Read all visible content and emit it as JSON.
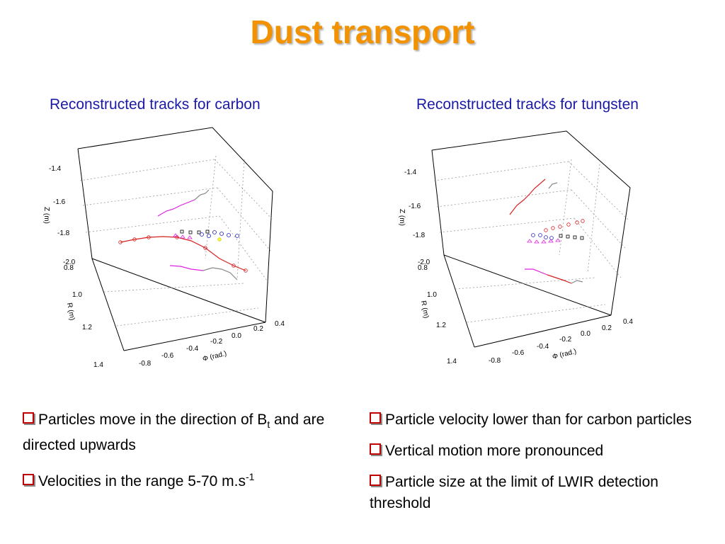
{
  "title": "Dust transport",
  "colors": {
    "title": "#f39200",
    "subtitle": "#1a1aa6",
    "bullet_box": "#c00000"
  },
  "subtitles": {
    "left": "Reconstructed tracks for carbon",
    "right": "Reconstructed tracks for tungsten"
  },
  "bullets_left": {
    "b1_a": "Particles move in the direction of B",
    "b1_sub": "t",
    "b1_b": " and are directed upwards",
    "b2_a": "Velocities in the range 5-70 m.s",
    "b2_sup": "-1"
  },
  "bullets_right": {
    "b1": "Particle velocity lower than for carbon particles",
    "b2": "Vertical motion more pronounced",
    "b3": "Particle size at the limit of LWIR detection threshold"
  },
  "chart_data": [
    {
      "type": "scatter",
      "title": "Reconstructed tracks for carbon",
      "zlabel": "Z (m)",
      "ylabel": "R (m)",
      "xlabel": "Φ (rad.)",
      "z_ticks": [
        "-1.4",
        "-1.6",
        "-1.8",
        "-2.0"
      ],
      "r_ticks": [
        "0.8",
        "1.0",
        "1.2",
        "1.4"
      ],
      "phi_ticks": [
        "-0.8",
        "-0.6",
        "-0.4",
        "-0.2",
        "0.0",
        "0.2",
        "0.4"
      ],
      "grid": true
    },
    {
      "type": "scatter",
      "title": "Reconstructed tracks for tungsten",
      "zlabel": "Z (m)",
      "ylabel": "R (m)",
      "xlabel": "Φ (rad.)",
      "z_ticks": [
        "-1.4",
        "-1.6",
        "-1.8",
        "-2.0"
      ],
      "r_ticks": [
        "0.8",
        "1.0",
        "1.2",
        "1.4"
      ],
      "phi_ticks": [
        "-0.8",
        "-0.6",
        "-0.4",
        "-0.2",
        "0.0",
        "0.2",
        "0.4"
      ],
      "grid": true
    }
  ]
}
